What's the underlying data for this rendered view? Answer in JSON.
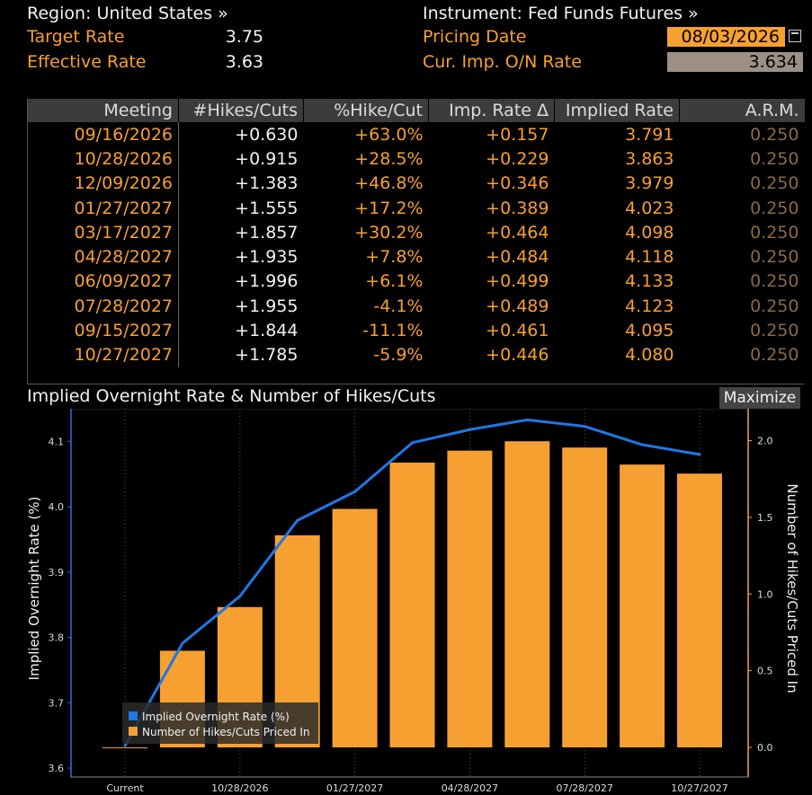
{
  "header": {
    "region_label": "Region: United States »",
    "instrument_label": "Instrument: Fed Funds Futures »",
    "target_rate_label": "Target Rate",
    "target_rate_value": "3.75",
    "effective_rate_label": "Effective Rate",
    "effective_rate_value": "3.63",
    "pricing_date_label": "Pricing Date",
    "pricing_date_value": "08/03/2026",
    "cur_imp_label": "Cur. Imp. O/N Rate",
    "cur_imp_value": "3.634"
  },
  "table": {
    "columns": [
      "Meeting",
      "#Hikes/Cuts",
      "%Hike/Cut",
      "Imp. Rate Δ",
      "Implied Rate",
      "A.R.M."
    ],
    "rows": [
      [
        "09/16/2026",
        "+0.630",
        "+63.0%",
        "+0.157",
        "3.791",
        "0.250"
      ],
      [
        "10/28/2026",
        "+0.915",
        "+28.5%",
        "+0.229",
        "3.863",
        "0.250"
      ],
      [
        "12/09/2026",
        "+1.383",
        "+46.8%",
        "+0.346",
        "3.979",
        "0.250"
      ],
      [
        "01/27/2027",
        "+1.555",
        "+17.2%",
        "+0.389",
        "4.023",
        "0.250"
      ],
      [
        "03/17/2027",
        "+1.857",
        "+30.2%",
        "+0.464",
        "4.098",
        "0.250"
      ],
      [
        "04/28/2027",
        "+1.935",
        "+7.8%",
        "+0.484",
        "4.118",
        "0.250"
      ],
      [
        "06/09/2027",
        "+1.996",
        "+6.1%",
        "+0.499",
        "4.133",
        "0.250"
      ],
      [
        "07/28/2027",
        "+1.955",
        "-4.1%",
        "+0.489",
        "4.123",
        "0.250"
      ],
      [
        "09/15/2027",
        "+1.844",
        "-11.1%",
        "+0.461",
        "4.095",
        "0.250"
      ],
      [
        "10/27/2027",
        "+1.785",
        "-5.9%",
        "+0.446",
        "4.080",
        "0.250"
      ]
    ]
  },
  "chart_title": "Implied Overnight Rate & Number of Hikes/Cuts",
  "maximize_label": "Maximize",
  "colors": {
    "accent": "#f7a032",
    "line": "#1e78e6",
    "header_bg": "#3c3c3c"
  },
  "chart_data": {
    "type": "bar",
    "categories": [
      "Current",
      "09/16/2026",
      "10/28/2026",
      "12/09/2026",
      "01/27/2027",
      "03/17/2027",
      "04/28/2027",
      "06/09/2027",
      "07/28/2027",
      "09/15/2027",
      "10/27/2027"
    ],
    "x_tick_labels": [
      "Current",
      "10/28/2026",
      "01/27/2027",
      "04/28/2027",
      "07/28/2027",
      "10/27/2027"
    ],
    "series": [
      {
        "name": "Implied Overnight Rate (%)",
        "type": "line",
        "axis": "left",
        "values": [
          3.634,
          3.791,
          3.863,
          3.979,
          4.023,
          4.098,
          4.118,
          4.133,
          4.123,
          4.095,
          4.08
        ]
      },
      {
        "name": "Number of Hikes/Cuts Priced In",
        "type": "bar",
        "axis": "right",
        "values": [
          0.0,
          0.63,
          0.915,
          1.383,
          1.555,
          1.857,
          1.935,
          1.996,
          1.955,
          1.844,
          1.785
        ]
      }
    ],
    "ylabel": "Implied Overnight Rate (%)",
    "y2label": "Number of Hikes/Cuts Priced In",
    "ylim": [
      3.6,
      4.15
    ],
    "yticks": [
      "3.6",
      "3.7",
      "3.8",
      "3.9",
      "4.0",
      "4.1"
    ],
    "y2lim": [
      0.0,
      2.05
    ],
    "y2ticks": [
      "0.0",
      "0.5",
      "1.0",
      "1.5",
      "2.0"
    ],
    "legend_position": "bottom-left",
    "grid": "vertical dotted"
  }
}
